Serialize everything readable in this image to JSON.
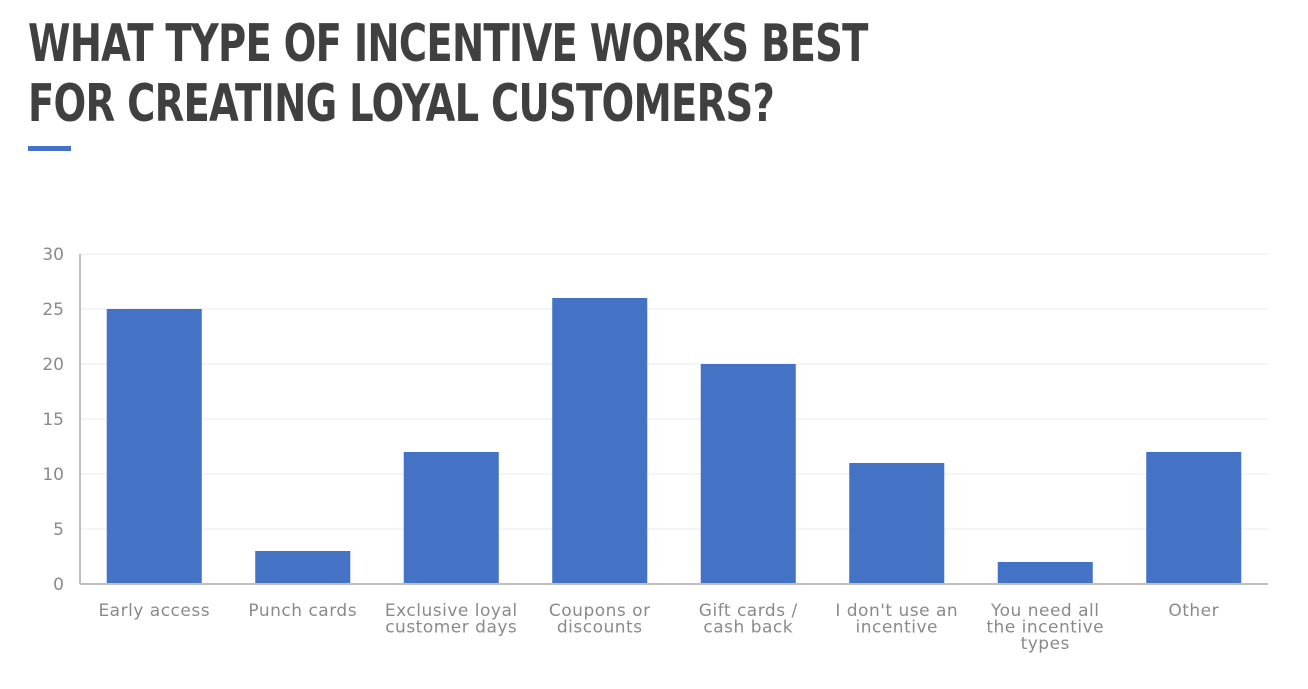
{
  "page": {
    "title_lines": [
      "What type of incentive works best",
      "for creating loyal customers?"
    ]
  },
  "colors": {
    "accent": "#4472C4",
    "bar": "#4472C4",
    "axis": "#bfbfbf",
    "grid": "#ebebeb",
    "text": "#8a8a8a",
    "title": "#404040"
  },
  "chart_data": {
    "type": "bar",
    "title": "What type of incentive works best for creating loyal customers?",
    "xlabel": "",
    "ylabel": "",
    "categories": [
      "Early access",
      "Punch cards",
      "Exclusive loyal customer days",
      "Coupons or discounts",
      "Gift cards / cash back",
      "I don't use an incentive",
      "You need all the incentive types",
      "Other"
    ],
    "category_label_lines": [
      [
        "Early access"
      ],
      [
        "Punch cards"
      ],
      [
        "Exclusive loyal",
        "customer days"
      ],
      [
        "Coupons or",
        "discounts"
      ],
      [
        "Gift cards /",
        "cash back"
      ],
      [
        "I don't use an",
        "incentive"
      ],
      [
        "You need all",
        "the incentive",
        "types"
      ],
      [
        "Other"
      ]
    ],
    "values": [
      25,
      3,
      12,
      26,
      20,
      11,
      2,
      12
    ],
    "ylim": [
      0,
      30
    ],
    "yticks": [
      0,
      5,
      10,
      15,
      20,
      25,
      30
    ],
    "grid": true,
    "legend": "none"
  }
}
